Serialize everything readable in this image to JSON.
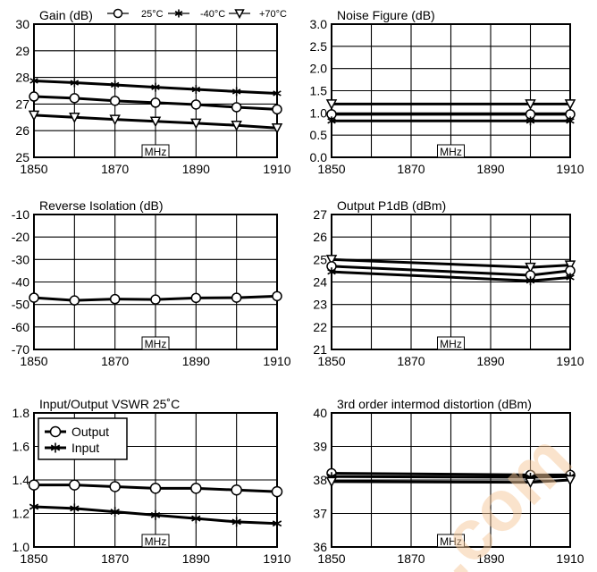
{
  "chart_data": [
    {
      "type": "line",
      "title": "Gain (dB)",
      "x": [
        1850,
        1860,
        1870,
        1880,
        1890,
        1900,
        1910
      ],
      "xticks": [
        1850,
        1870,
        1890,
        1910
      ],
      "xlim": [
        1850,
        1910
      ],
      "ylim": [
        25,
        30
      ],
      "yticks": [
        25,
        26,
        27,
        28,
        29,
        30
      ],
      "unit_label": "MHz",
      "legend": {
        "placement": "top",
        "entries": [
          "25°C",
          "-40°C",
          "+70°C"
        ]
      },
      "series": [
        {
          "name": "25°C",
          "marker": "circle",
          "values": [
            27.28,
            27.22,
            27.12,
            27.05,
            26.98,
            26.88,
            26.8
          ]
        },
        {
          "name": "-40°C",
          "marker": "star",
          "values": [
            27.87,
            27.8,
            27.72,
            27.63,
            27.55,
            27.47,
            27.4
          ]
        },
        {
          "name": "+70°C",
          "marker": "triangle",
          "values": [
            26.58,
            26.5,
            26.42,
            26.35,
            26.28,
            26.2,
            26.1
          ]
        }
      ]
    },
    {
      "type": "line",
      "title": "Noise Figure (dB)",
      "x": [
        1850,
        1900,
        1910
      ],
      "xticks": [
        1850,
        1870,
        1890,
        1910
      ],
      "xlim": [
        1850,
        1910
      ],
      "ylim": [
        0,
        3
      ],
      "yticks": [
        "0.0",
        "0.5",
        "1.0",
        "1.5",
        "2.0",
        "2.5",
        "3.0"
      ],
      "unit_label": "MHz",
      "series": [
        {
          "marker": "triangle",
          "values": [
            1.2,
            1.2,
            1.2
          ]
        },
        {
          "marker": "circle",
          "values": [
            0.97,
            0.97,
            0.97
          ]
        },
        {
          "marker": "star",
          "values": [
            0.82,
            0.82,
            0.82
          ]
        }
      ]
    },
    {
      "type": "line",
      "title": "Reverse Isolation (dB)",
      "x": [
        1850,
        1860,
        1870,
        1880,
        1890,
        1900,
        1910
      ],
      "xticks": [
        1850,
        1870,
        1890,
        1910
      ],
      "xlim": [
        1850,
        1910
      ],
      "ylim": [
        -70,
        -10
      ],
      "yticks": [
        -70,
        -60,
        -50,
        -40,
        -30,
        -20,
        -10
      ],
      "unit_label": "MHz",
      "series": [
        {
          "marker": "circle",
          "values": [
            -47,
            -48.2,
            -47.6,
            -47.8,
            -47.1,
            -47.0,
            -46.3
          ]
        }
      ]
    },
    {
      "type": "line",
      "title": "Output P1dB (dBm)",
      "x": [
        1850,
        1900,
        1910
      ],
      "xticks": [
        1850,
        1870,
        1890,
        1910
      ],
      "xlim": [
        1850,
        1910
      ],
      "ylim": [
        21,
        27
      ],
      "yticks": [
        21,
        22,
        23,
        24,
        25,
        26,
        27
      ],
      "unit_label": "MHz",
      "series": [
        {
          "marker": "triangle",
          "values": [
            25.0,
            24.65,
            24.75
          ]
        },
        {
          "marker": "circle",
          "values": [
            24.7,
            24.3,
            24.5
          ]
        },
        {
          "marker": "star",
          "values": [
            24.45,
            24.05,
            24.2
          ]
        }
      ]
    },
    {
      "type": "line",
      "title": "Input/Output VSWR 25˚C",
      "x": [
        1850,
        1860,
        1870,
        1880,
        1890,
        1900,
        1910
      ],
      "xticks": [
        1850,
        1870,
        1890,
        1910
      ],
      "xlim": [
        1850,
        1910
      ],
      "ylim": [
        1.0,
        1.8
      ],
      "yticks": [
        "1.0",
        "1.2",
        "1.4",
        "1.6",
        "1.8"
      ],
      "unit_label": "MHz",
      "legend": {
        "placement": "top-left",
        "entries": [
          "Output",
          "Input"
        ]
      },
      "series": [
        {
          "name": "Output",
          "marker": "circle",
          "values": [
            1.37,
            1.37,
            1.36,
            1.35,
            1.35,
            1.34,
            1.33
          ]
        },
        {
          "name": "Input",
          "marker": "star",
          "values": [
            1.24,
            1.23,
            1.21,
            1.19,
            1.17,
            1.15,
            1.14
          ]
        }
      ]
    },
    {
      "type": "line",
      "title": "3rd order intermod distortion (dBm)",
      "x": [
        1850,
        1900,
        1910
      ],
      "xticks": [
        1850,
        1870,
        1890,
        1910
      ],
      "xlim": [
        1850,
        1910
      ],
      "ylim": [
        36,
        40
      ],
      "yticks": [
        36,
        37,
        38,
        39,
        40
      ],
      "unit_label": "MHz",
      "series": [
        {
          "marker": "circle",
          "values": [
            38.2,
            38.15,
            38.15
          ]
        },
        {
          "marker": "star",
          "values": [
            38.1,
            38.08,
            38.1
          ]
        },
        {
          "marker": "triangle",
          "values": [
            37.95,
            37.93,
            38.0
          ]
        }
      ]
    }
  ],
  "watermark_text": ".com"
}
